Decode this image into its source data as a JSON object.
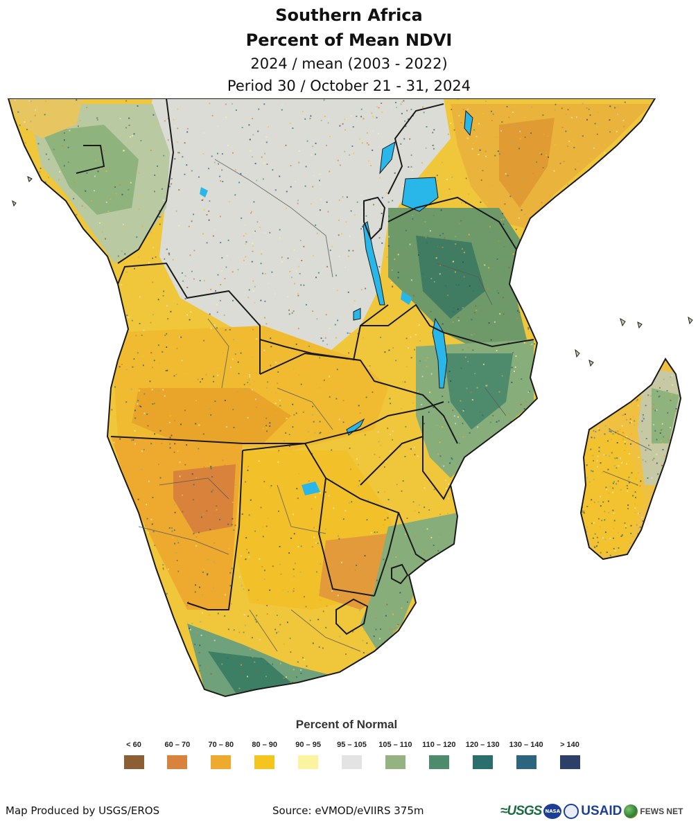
{
  "title": {
    "line1": "Southern Africa",
    "line2": "Percent of Mean NDVI",
    "line3": "2024 / mean (2003 - 2022)",
    "line4": "Period 30 / October 21 - 31, 2024"
  },
  "legend": {
    "title": "Percent of Normal",
    "classes": [
      {
        "label": "< 60",
        "color": "#8b5e34"
      },
      {
        "label": "60 – 70",
        "color": "#d9823b"
      },
      {
        "label": "70 – 80",
        "color": "#eeaa2e"
      },
      {
        "label": "80 – 90",
        "color": "#f5c51f"
      },
      {
        "label": "90 – 95",
        "color": "#fbf3a0"
      },
      {
        "label": "95 – 105",
        "color": "#e3e3e3"
      },
      {
        "label": "105 – 110",
        "color": "#94b381"
      },
      {
        "label": "110 – 120",
        "color": "#4e8a6c"
      },
      {
        "label": "120 – 130",
        "color": "#2a6f6d"
      },
      {
        "label": "130 – 140",
        "color": "#2b6580"
      },
      {
        "label": "> 140",
        "color": "#2c4069"
      }
    ]
  },
  "footer": {
    "produced_by": "Map Produced by USGS/EROS",
    "source": "Source: eVMOD/eVIIRS 375m",
    "logos": {
      "usgs": "≈USGS",
      "nasa": "NASA",
      "usaid": "USAID",
      "fews": "FEWS NET"
    }
  },
  "colors": {
    "water": "#29b6e8",
    "border": "#1a1a1a",
    "background": "#ffffff"
  }
}
